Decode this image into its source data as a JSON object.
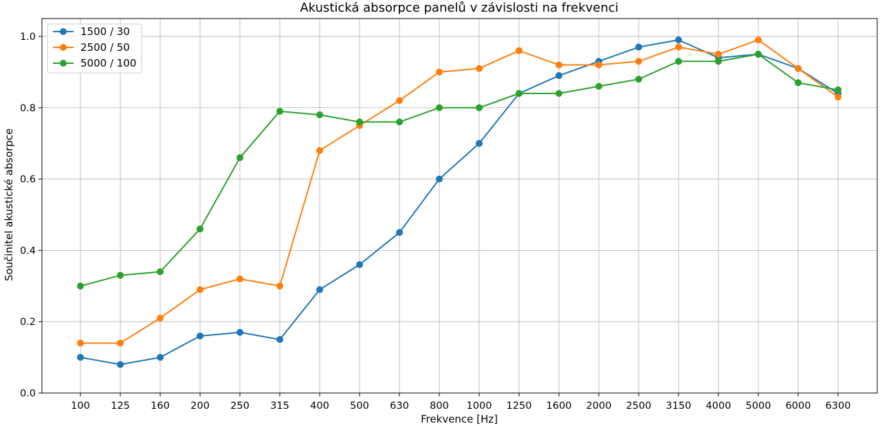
{
  "chart_data": {
    "type": "line",
    "title": "Akustická absorpce panelů v závislosti na frekvenci",
    "xlabel": "Frekvence [Hz]",
    "ylabel": "Součinitel akustické absorpce",
    "categories": [
      "100",
      "125",
      "160",
      "200",
      "250",
      "315",
      "400",
      "500",
      "630",
      "800",
      "1000",
      "1250",
      "1600",
      "2000",
      "2500",
      "3150",
      "4000",
      "5000",
      "6000",
      "6300"
    ],
    "ylim": [
      0.0,
      1.05
    ],
    "yticks": [
      0.0,
      0.2,
      0.4,
      0.6,
      0.8,
      1.0
    ],
    "ytick_labels": [
      "0.0",
      "0.2",
      "0.4",
      "0.6",
      "0.8",
      "1.0"
    ],
    "grid": true,
    "legend_position": "upper-left",
    "series": [
      {
        "name": "1500 / 30",
        "color": "#1f77b4",
        "values": [
          0.1,
          0.08,
          0.1,
          0.16,
          0.17,
          0.15,
          0.29,
          0.36,
          0.45,
          0.6,
          0.7,
          0.84,
          0.89,
          0.93,
          0.97,
          0.99,
          0.94,
          0.95,
          0.91,
          0.84
        ]
      },
      {
        "name": "2500 / 50",
        "color": "#ff7f0e",
        "values": [
          0.14,
          0.14,
          0.21,
          0.29,
          0.32,
          0.3,
          0.68,
          0.75,
          0.82,
          0.9,
          0.91,
          0.96,
          0.92,
          0.92,
          0.93,
          0.97,
          0.95,
          0.99,
          0.91,
          0.83
        ]
      },
      {
        "name": "5000 / 100",
        "color": "#2ca02c",
        "values": [
          0.3,
          0.33,
          0.34,
          0.46,
          0.66,
          0.79,
          0.78,
          0.76,
          0.76,
          0.8,
          0.8,
          0.84,
          0.84,
          0.86,
          0.88,
          0.93,
          0.93,
          0.95,
          0.87,
          0.85
        ]
      }
    ]
  }
}
